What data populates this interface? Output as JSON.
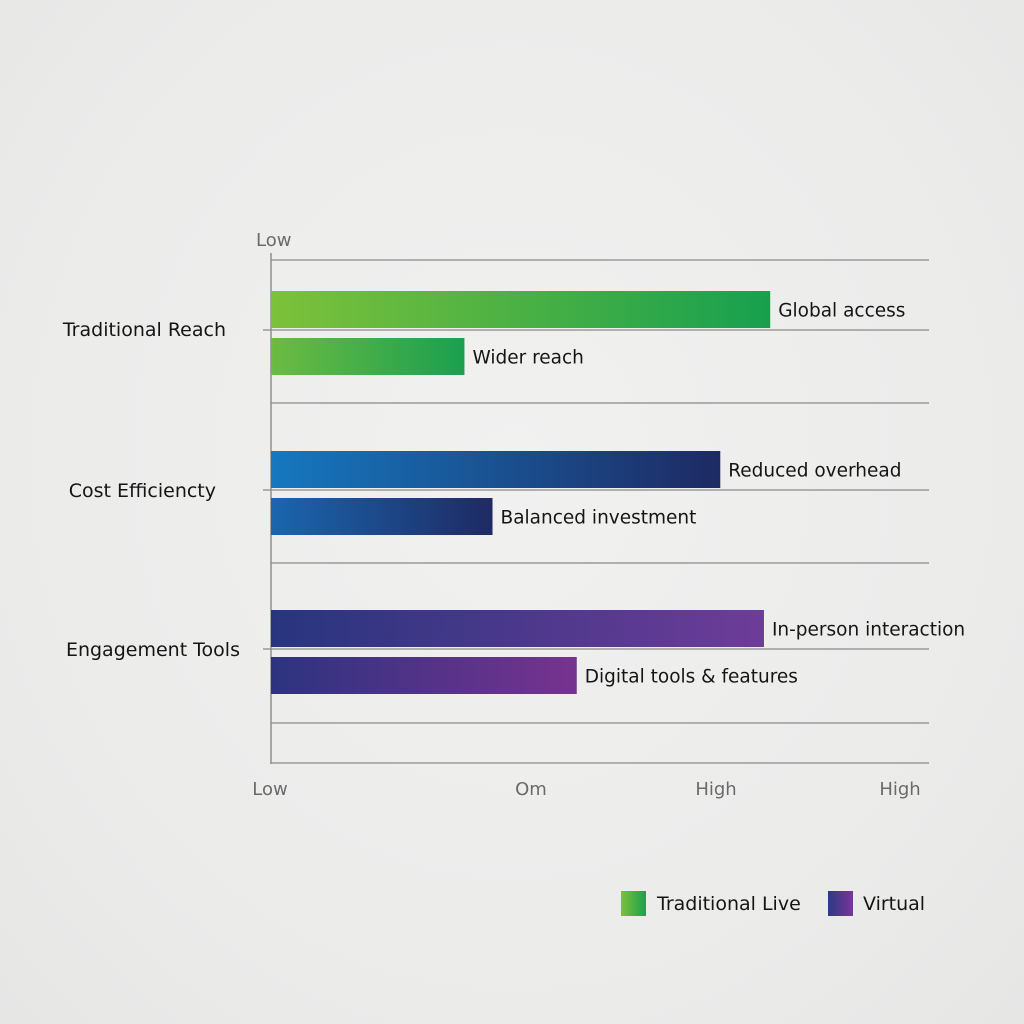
{
  "chart_data": {
    "type": "bar",
    "orientation": "horizontal",
    "title": "",
    "xlabel": "",
    "ylabel": "",
    "top_axis_label": "Low",
    "x_tick_labels": [
      "Low",
      "Om",
      "High",
      "High"
    ],
    "xlim": [
      0,
      100
    ],
    "grid": true,
    "legend_position": "bottom-right",
    "categories": [
      "Traditional Reach",
      "Cost Efficiencty",
      "Engagement Tools"
    ],
    "groups": [
      {
        "category": "Traditional Reach",
        "bars": [
          {
            "value": 80,
            "label": "Global access",
            "gradient": [
              "#7dc13a",
              "#18a04f"
            ]
          },
          {
            "value": 31,
            "label": "Wider reach",
            "gradient": [
              "#6cbb42",
              "#1b9f50"
            ]
          }
        ]
      },
      {
        "category": "Cost Efficiencty",
        "bars": [
          {
            "value": 72,
            "label": "Reduced overhead",
            "gradient": [
              "#1678bf",
              "#1e2a63"
            ]
          },
          {
            "value": 35.5,
            "label": "Balanced investment",
            "gradient": [
              "#1a66ae",
              "#1f2a63"
            ]
          }
        ]
      },
      {
        "category": "Engagement Tools",
        "bars": [
          {
            "value": 79,
            "label": "In-person interaction",
            "gradient": [
              "#28357e",
              "#6d3c99"
            ]
          },
          {
            "value": 49,
            "label": "Digital tools & features",
            "gradient": [
              "#2d3380",
              "#76338f"
            ]
          }
        ]
      }
    ],
    "legend": [
      {
        "name": "Traditional Live",
        "gradient": [
          "#7dc13a",
          "#1a9f4f"
        ]
      },
      {
        "name": "Virtual",
        "gradient": [
          "#2c3a86",
          "#7a3597"
        ]
      }
    ]
  },
  "colors": {
    "background": "#ececeb",
    "axis": "#8f8f8f",
    "gridline": "#9a9a9a"
  }
}
